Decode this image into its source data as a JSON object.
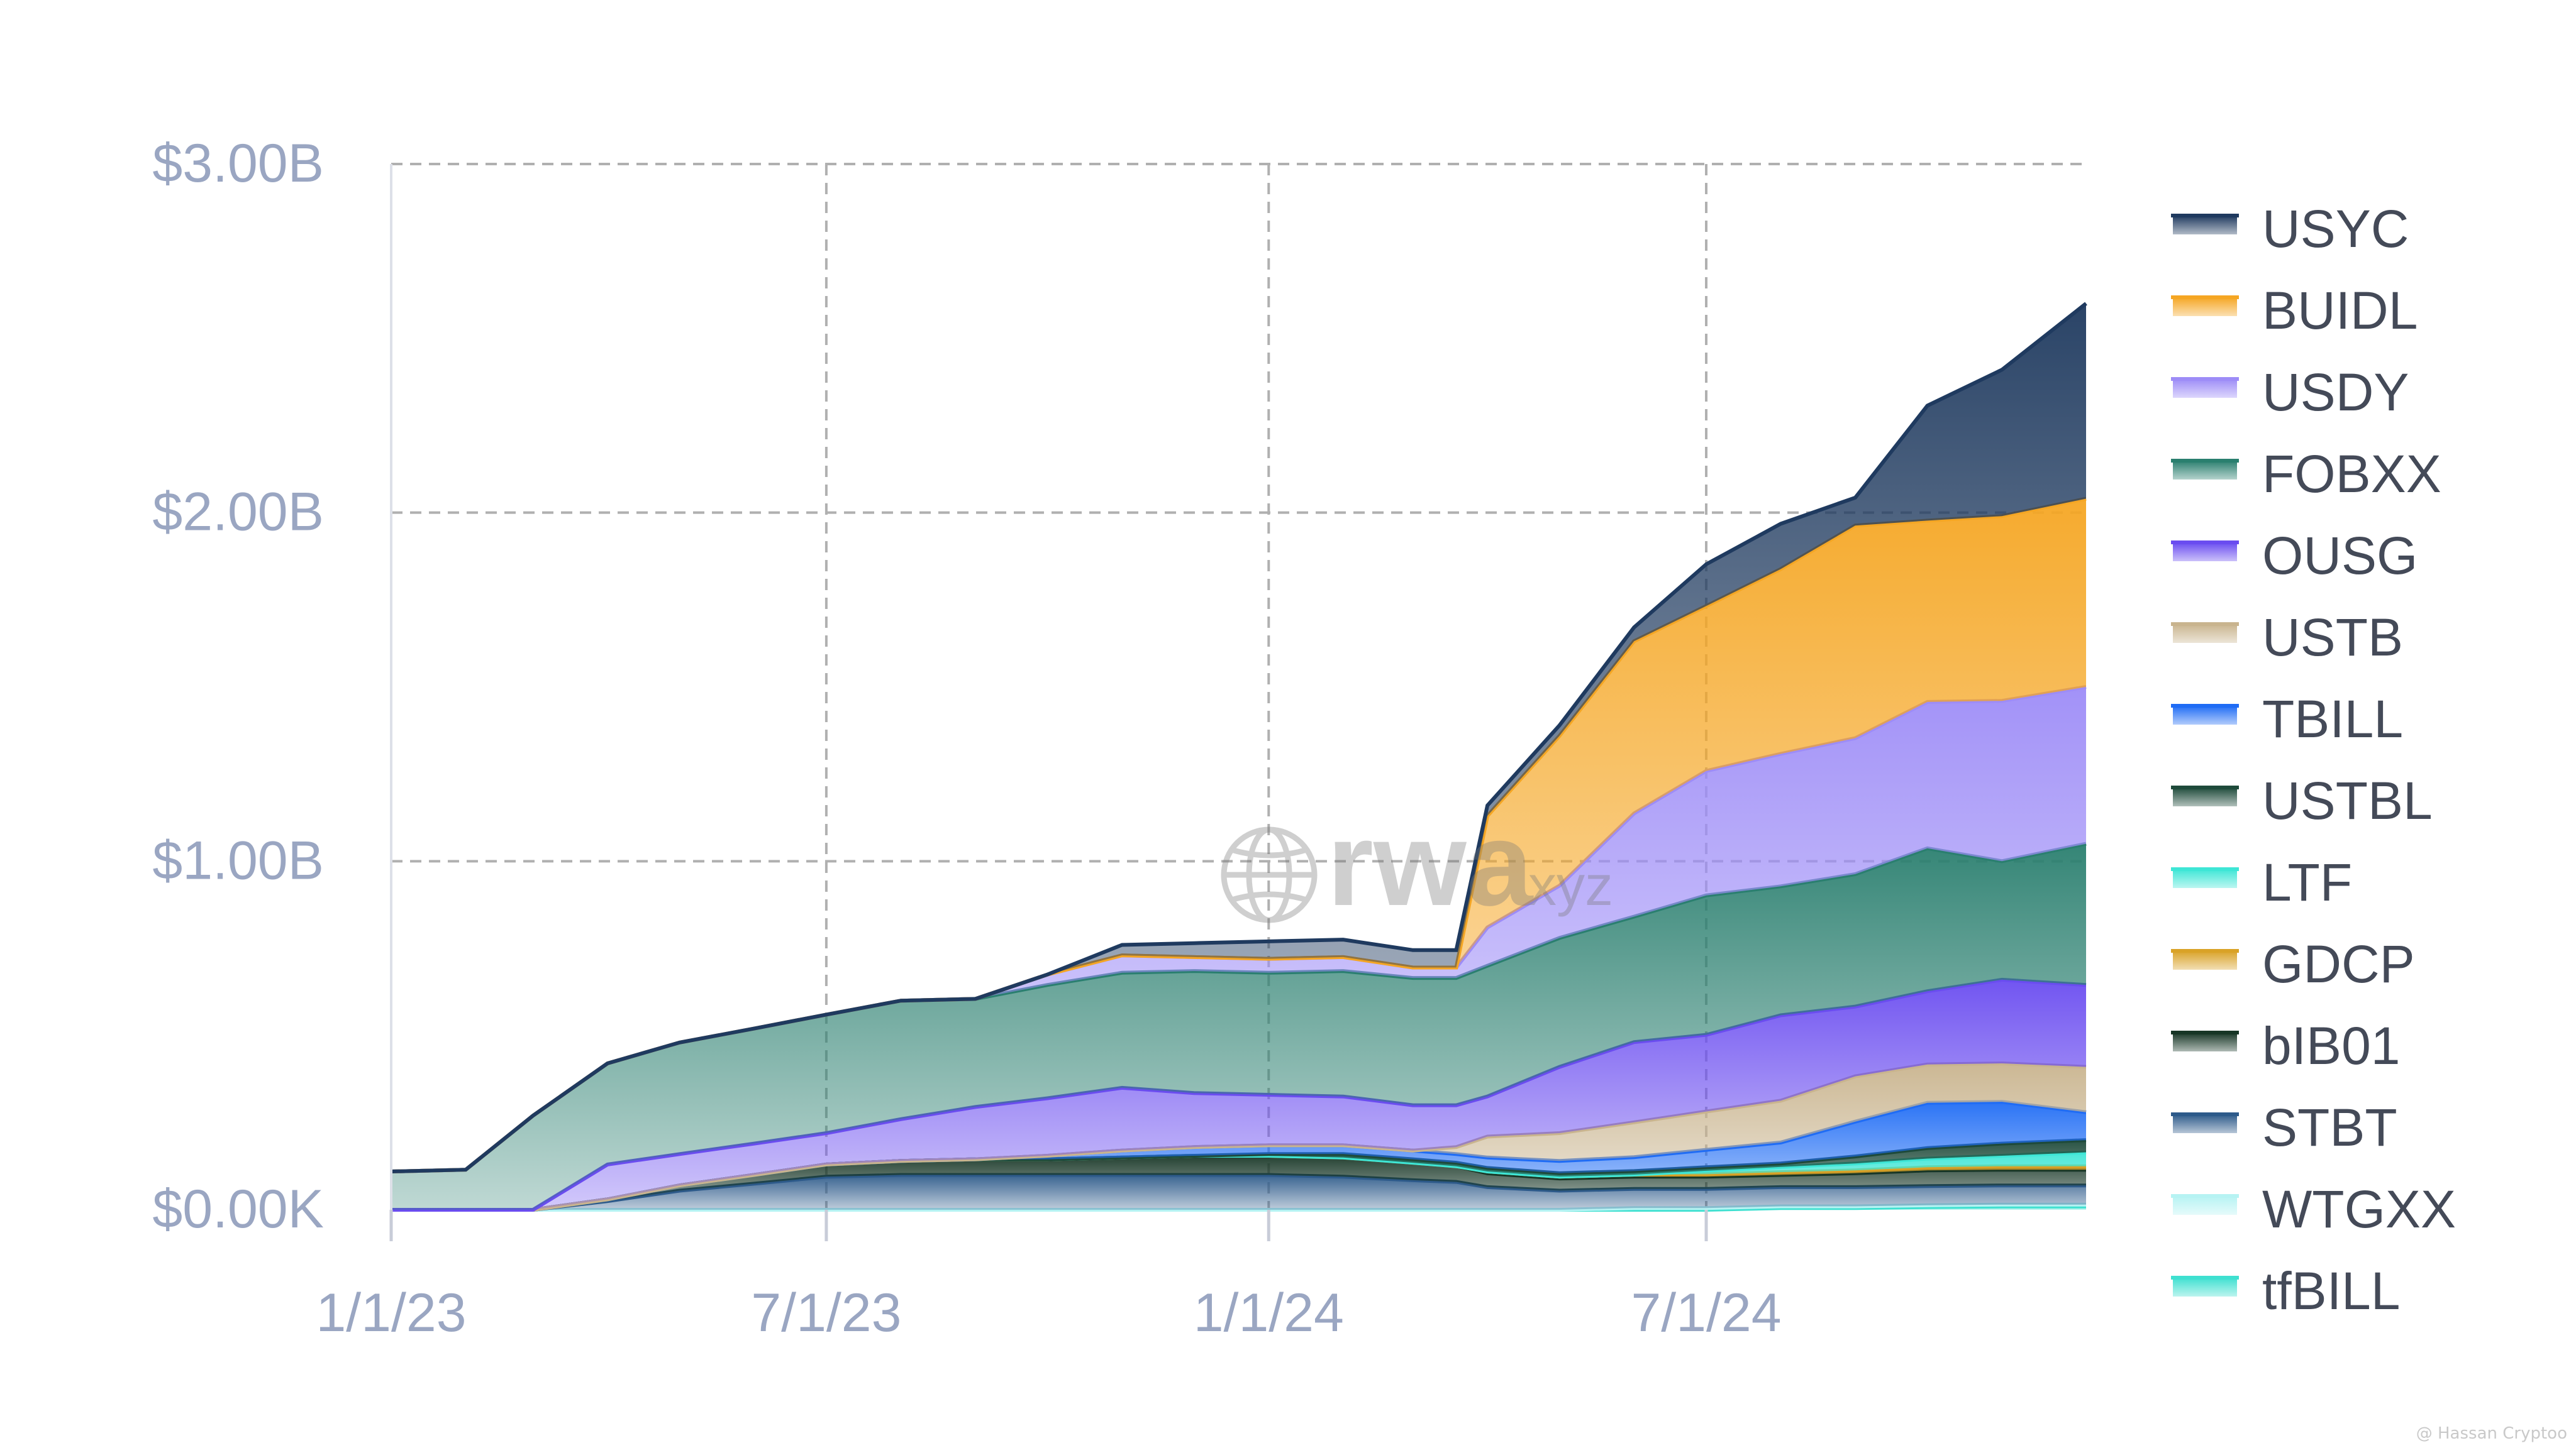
{
  "chart_data": {
    "type": "area",
    "stacked": true,
    "title": "",
    "xlabel": "",
    "ylabel": "",
    "ylim": [
      0,
      3000
    ],
    "y_unit": "$M",
    "y_ticks": [
      {
        "value": 0,
        "label": "$0.00K"
      },
      {
        "value": 1000,
        "label": "$1.00B"
      },
      {
        "value": 2000,
        "label": "$2.00B"
      },
      {
        "value": 3000,
        "label": "$3.00B"
      }
    ],
    "x_range": [
      "2023-01-01",
      "2024-12-06"
    ],
    "x_ticks": [
      {
        "date": "2023-01-01",
        "label": "1/1/23"
      },
      {
        "date": "2023-07-01",
        "label": "7/1/23"
      },
      {
        "date": "2024-01-01",
        "label": "1/1/24"
      },
      {
        "date": "2024-07-01",
        "label": "7/1/24"
      }
    ],
    "grid": true,
    "legend_position": "right",
    "x": [
      "2023-01-01",
      "2023-02-01",
      "2023-03-01",
      "2023-04-01",
      "2023-05-01",
      "2023-06-01",
      "2023-07-01",
      "2023-08-01",
      "2023-09-01",
      "2023-10-01",
      "2023-11-01",
      "2023-12-01",
      "2024-01-01",
      "2024-02-01",
      "2024-03-01",
      "2024-03-19",
      "2024-04-01",
      "2024-05-01",
      "2024-06-01",
      "2024-07-01",
      "2024-08-01",
      "2024-09-01",
      "2024-10-01",
      "2024-11-01",
      "2024-12-06"
    ],
    "series": [
      {
        "name": "USYC",
        "color": "#1f3a5f",
        "values": [
          0,
          0,
          0,
          0,
          0,
          0,
          0,
          0,
          0,
          0,
          30,
          40,
          50,
          50,
          50,
          50,
          30,
          30,
          40,
          120,
          130,
          80,
          330,
          420,
          560
        ]
      },
      {
        "name": "BUIDL",
        "color": "#f5a623",
        "values": [
          0,
          0,
          0,
          0,
          0,
          0,
          0,
          0,
          0,
          0,
          0,
          0,
          0,
          0,
          0,
          0,
          320,
          430,
          494,
          473,
          530,
          610,
          520,
          530,
          540
        ]
      },
      {
        "name": "USDY",
        "color": "#9d8cf7",
        "values": [
          0,
          0,
          0,
          0,
          0,
          0,
          0,
          0,
          0,
          30,
          50,
          40,
          40,
          40,
          30,
          30,
          110,
          150,
          296,
          357,
          380,
          390,
          420,
          460,
          450
        ]
      },
      {
        "name": "FOBXX",
        "color": "#2a7f6f",
        "values": [
          110,
          115,
          270,
          290,
          320,
          330,
          340,
          340,
          310,
          325,
          330,
          350,
          350,
          360,
          365,
          365,
          375,
          370,
          360,
          400,
          370,
          380,
          410,
          340,
          405
        ]
      },
      {
        "name": "OUSG",
        "color": "#6a4cf0",
        "values": [
          0,
          0,
          0,
          100,
          90,
          90,
          90,
          120,
          150,
          165,
          180,
          155,
          145,
          140,
          130,
          120,
          115,
          190,
          230,
          220,
          245,
          200,
          210,
          240,
          235
        ]
      },
      {
        "name": "USTB",
        "color": "#c9b48e",
        "values": [
          0,
          0,
          0,
          0,
          0,
          0,
          0,
          0,
          0,
          0,
          0,
          0,
          0,
          0,
          0,
          20,
          60,
          80,
          100,
          110,
          120,
          130,
          110,
          110,
          130
        ]
      },
      {
        "name": "TBILL",
        "color": "#1f6cf5",
        "values": [
          0,
          0,
          0,
          0,
          0,
          0,
          0,
          0,
          0,
          10,
          20,
          25,
          25,
          25,
          25,
          25,
          30,
          35,
          40,
          50,
          60,
          100,
          130,
          120,
          80
        ]
      },
      {
        "name": "USTBL",
        "color": "#1e4a3a",
        "values": [
          0,
          0,
          0,
          0,
          0,
          0,
          0,
          0,
          0,
          0,
          0,
          0,
          5,
          10,
          10,
          10,
          10,
          10,
          10,
          10,
          10,
          20,
          30,
          35,
          35
        ]
      },
      {
        "name": "LTF",
        "color": "#3ee6d6",
        "values": [
          0,
          0,
          0,
          0,
          0,
          0,
          0,
          0,
          0,
          0,
          0,
          0,
          0,
          0,
          0,
          0,
          0,
          0,
          0,
          10,
          15,
          20,
          25,
          30,
          40
        ]
      },
      {
        "name": "GDCP",
        "color": "#d9a227",
        "values": [
          0,
          0,
          0,
          0,
          0,
          0,
          0,
          0,
          0,
          0,
          0,
          0,
          0,
          0,
          0,
          0,
          5,
          5,
          6,
          7,
          8,
          8,
          9,
          10,
          10
        ]
      },
      {
        "name": "bIB01",
        "color": "#173626",
        "values": [
          0,
          0,
          0,
          5,
          15,
          25,
          35,
          40,
          45,
          45,
          50,
          55,
          55,
          55,
          50,
          45,
          40,
          35,
          35,
          35,
          35,
          40,
          45,
          45,
          45
        ]
      },
      {
        "name": "STBT",
        "color": "#2d5a8a",
        "values": [
          0,
          0,
          0,
          25,
          55,
          75,
          95,
          100,
          100,
          100,
          100,
          100,
          100,
          95,
          85,
          80,
          65,
          55,
          55,
          55,
          55,
          55,
          55,
          55,
          55
        ]
      },
      {
        "name": "WTGXX",
        "color": "#b6f3f3",
        "values": [
          0,
          0,
          0,
          0,
          0,
          0,
          0,
          0,
          0,
          0,
          0,
          0,
          0,
          0,
          0,
          0,
          0,
          0,
          5,
          5,
          5,
          5,
          5,
          5,
          5
        ]
      },
      {
        "name": "tfBILL",
        "color": "#3fe0d0",
        "values": [
          0,
          0,
          0,
          0,
          0,
          0,
          0,
          0,
          0,
          0,
          0,
          0,
          0,
          0,
          0,
          0,
          0,
          0,
          0,
          0,
          5,
          5,
          8,
          10,
          10
        ]
      }
    ]
  },
  "watermark": {
    "text": "rwa",
    "suffix": ".xyz"
  },
  "credit": "@ Hassan Cryptoo"
}
